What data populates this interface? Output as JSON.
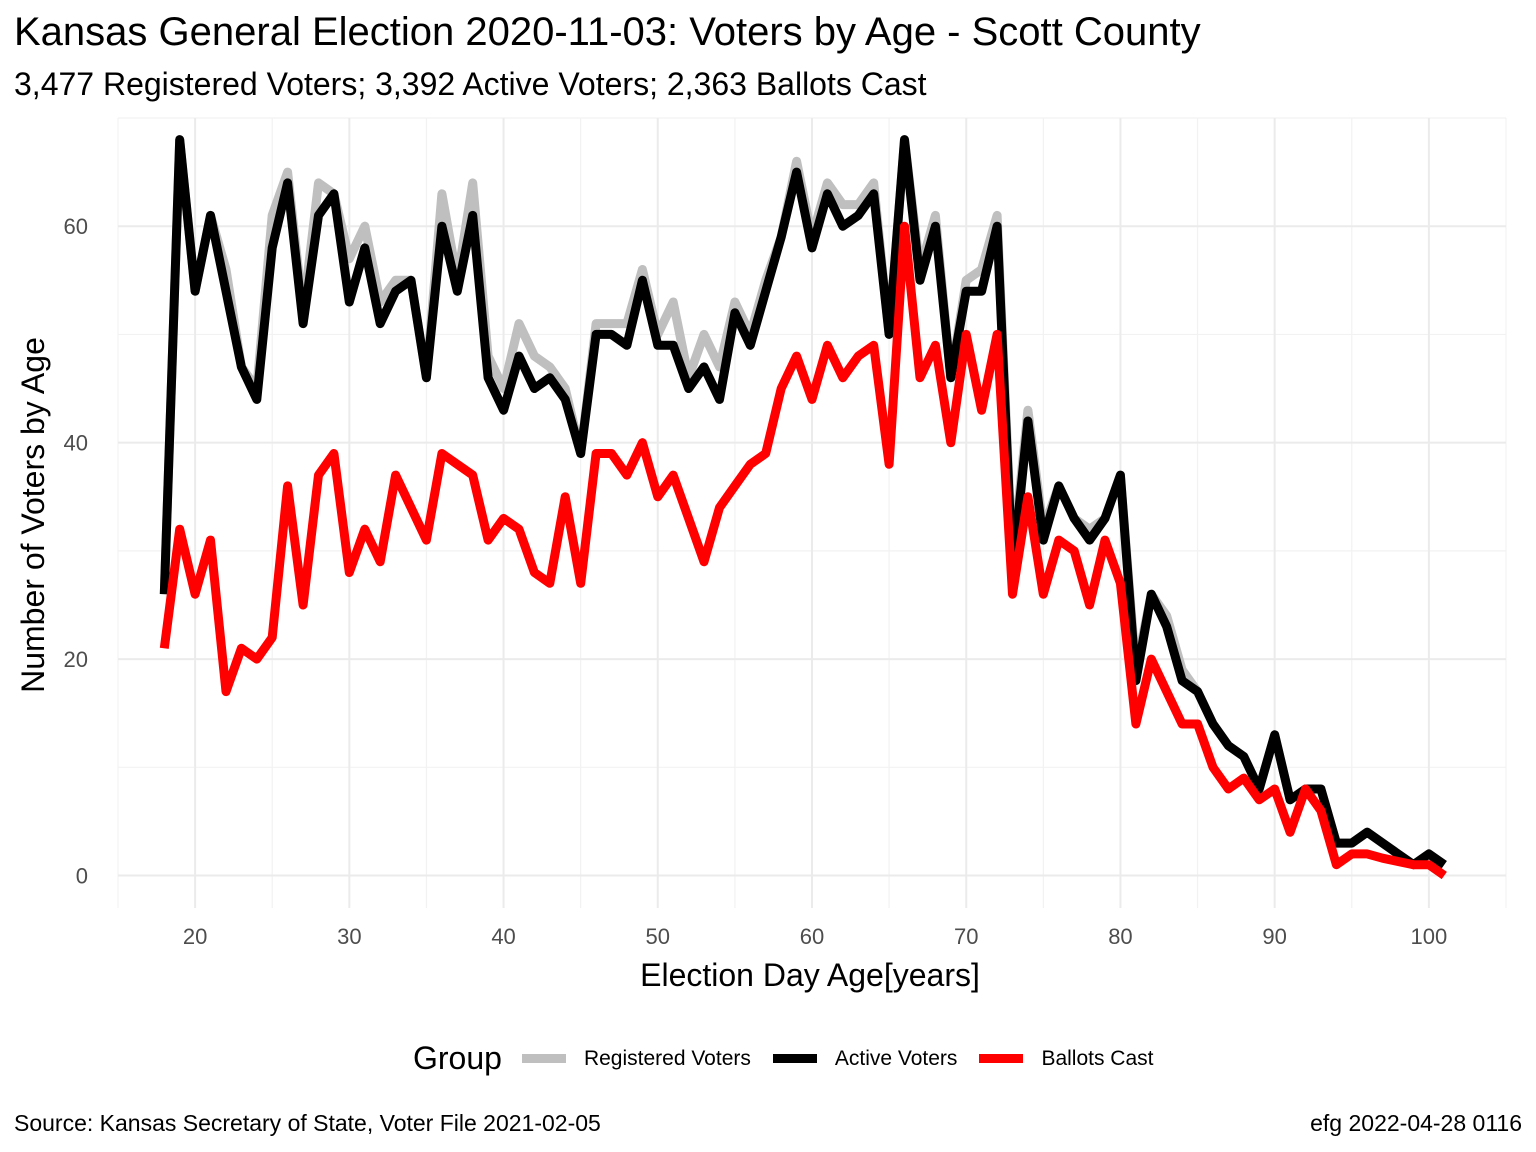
{
  "title": "Kansas General Election 2020-11-03:  Voters by Age - Scott County",
  "subtitle": "3,477 Registered Voters; 3,392 Active Voters; 2,363 Ballots Cast",
  "legend": {
    "title": "Group",
    "items": [
      {
        "label": "Registered Voters",
        "color": "#bfbfbf"
      },
      {
        "label": "Active Voters",
        "color": "#000000"
      },
      {
        "label": "Ballots Cast",
        "color": "#ff0000"
      }
    ]
  },
  "caption_left": "Source:  Kansas Secretary of State, Voter File  2021-02-05",
  "caption_right": "efg 2022-04-28 0116",
  "chart_data": {
    "type": "line",
    "title": "Kansas General Election 2020-11-03:  Voters by Age - Scott County",
    "subtitle": "3,477 Registered Voters; 3,392 Active Voters; 2,363 Ballots Cast",
    "xlabel": "Election Day Age[years]",
    "ylabel": "Number of Voters by Age",
    "xlim": [
      15,
      105
    ],
    "ylim": [
      -3,
      70
    ],
    "xticks": [
      20,
      30,
      40,
      50,
      60,
      70,
      80,
      90,
      100
    ],
    "yticks": [
      0,
      20,
      40,
      60
    ],
    "grid": true,
    "legend_position": "bottom",
    "x": [
      18,
      19,
      20,
      21,
      22,
      23,
      24,
      25,
      26,
      27,
      28,
      29,
      30,
      31,
      32,
      33,
      34,
      35,
      36,
      37,
      38,
      39,
      40,
      41,
      42,
      43,
      44,
      45,
      46,
      47,
      48,
      49,
      50,
      51,
      52,
      53,
      54,
      55,
      56,
      57,
      58,
      59,
      60,
      61,
      62,
      63,
      64,
      65,
      66,
      67,
      68,
      69,
      70,
      71,
      72,
      73,
      74,
      75,
      76,
      77,
      78,
      79,
      80,
      81,
      82,
      83,
      84,
      85,
      86,
      87,
      88,
      89,
      90,
      91,
      92,
      93,
      94,
      95,
      96,
      97,
      98,
      99,
      100,
      101
    ],
    "series": [
      {
        "name": "Registered Voters",
        "color": "#bfbfbf",
        "values": [
          26,
          68,
          54,
          61,
          56,
          47,
          45,
          61,
          65,
          52,
          64,
          63,
          57,
          60,
          53,
          55,
          55,
          46,
          63,
          55,
          64,
          48,
          45,
          51,
          48,
          47,
          45,
          39,
          51,
          51,
          51,
          56,
          50,
          53,
          46,
          50,
          47,
          53,
          50,
          55,
          59,
          66,
          59,
          64,
          62,
          62,
          64,
          50,
          68,
          56,
          61,
          46,
          55,
          56,
          61,
          29,
          43,
          32,
          36,
          33,
          32,
          33,
          37,
          19,
          26,
          24,
          19,
          17,
          14,
          12,
          11,
          8,
          13,
          7,
          8,
          8,
          3,
          3,
          4,
          3,
          2,
          1,
          2,
          1
        ]
      },
      {
        "name": "Active Voters",
        "color": "#000000",
        "values": [
          26,
          68,
          54,
          61,
          54,
          47,
          44,
          58,
          64,
          51,
          61,
          63,
          53,
          58,
          51,
          54,
          55,
          46,
          60,
          54,
          61,
          46,
          43,
          48,
          45,
          46,
          44,
          39,
          50,
          50,
          49,
          55,
          49,
          49,
          45,
          47,
          44,
          52,
          49,
          54,
          59,
          65,
          58,
          63,
          60,
          61,
          63,
          50,
          68,
          55,
          60,
          46,
          54,
          54,
          60,
          28,
          42,
          31,
          36,
          33,
          31,
          33,
          37,
          18,
          26,
          23,
          18,
          17,
          14,
          12,
          11,
          8,
          13,
          7,
          8,
          8,
          3,
          3,
          4,
          3,
          2,
          1,
          2,
          1
        ]
      },
      {
        "name": "Ballots Cast",
        "color": "#ff0000",
        "values": [
          21,
          32,
          26,
          31,
          17,
          21,
          20,
          22,
          36,
          25,
          37,
          39,
          28,
          32,
          29,
          37,
          34,
          31,
          39,
          38,
          37,
          31,
          33,
          32,
          28,
          27,
          35,
          27,
          39,
          39,
          37,
          40,
          35,
          37,
          33,
          29,
          34,
          36,
          38,
          39,
          45,
          48,
          44,
          49,
          46,
          48,
          49,
          38,
          60,
          46,
          49,
          40,
          50,
          43,
          50,
          26,
          35,
          26,
          31,
          30,
          25,
          31,
          27,
          14,
          20,
          17,
          14,
          14,
          10,
          8,
          9,
          7,
          8,
          4,
          8,
          6,
          1,
          2,
          2,
          1.6,
          1.3,
          1,
          1,
          0
        ]
      }
    ]
  }
}
